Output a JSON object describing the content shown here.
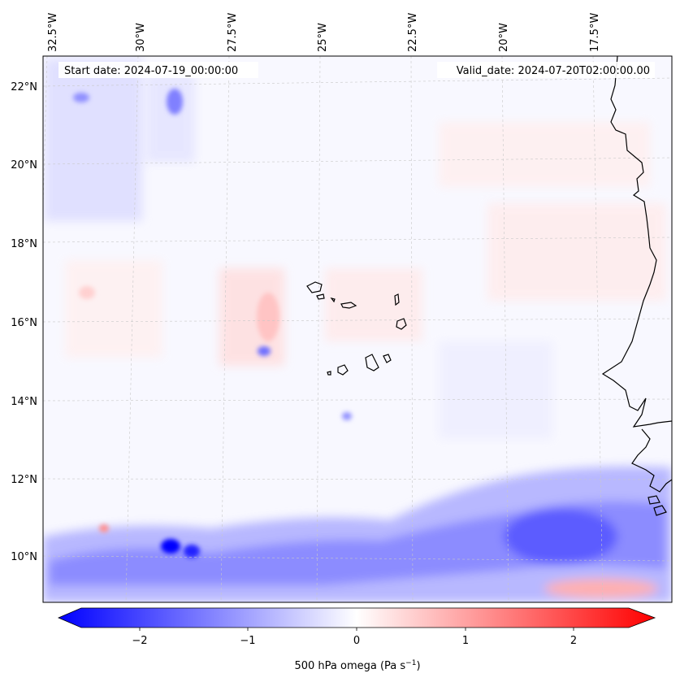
{
  "map": {
    "start_label": "Start date: 2024-07-19_00:00:00",
    "valid_label": "Valid_date: 2024-07-20T02:00:00.00",
    "lon_ticks": [
      "32.5°W",
      "30°W",
      "27.5°W",
      "25°W",
      "22.5°W",
      "20°W",
      "17.5°W"
    ],
    "lat_ticks": [
      "22°N",
      "20°N",
      "18°N",
      "16°N",
      "14°N",
      "12°N",
      "10°N"
    ],
    "extent": {
      "lon_min": -33.0,
      "lon_max": -15.5,
      "lat_min": 8.9,
      "lat_max": 22.7
    }
  },
  "colorbar": {
    "label_main": "500 hPa omega (Pa s",
    "label_sup": "−1",
    "label_close": ")",
    "ticks": [
      "−2",
      "−1",
      "0",
      "1",
      "2"
    ],
    "range": [
      -2.5,
      2.5
    ],
    "low_color": "#0000ff",
    "mid_color": "#ffffff",
    "high_color": "#ff0000"
  }
}
